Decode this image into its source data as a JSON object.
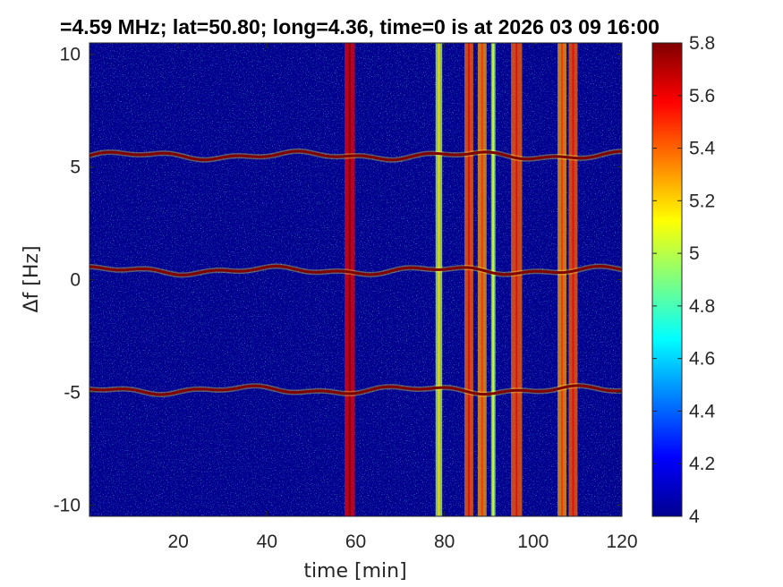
{
  "chart_data": {
    "type": "heatmap",
    "title": "=4.59 MHz;  lat=50.80; long=4.36, time=0 is at 2026 03 09 16:00",
    "xlabel": "time [min]",
    "ylabel": "Δf [Hz]",
    "xlim": [
      0,
      120
    ],
    "ylim": [
      -10.5,
      10.5
    ],
    "x_ticks": [
      "20",
      "40",
      "60",
      "80",
      "100",
      "120"
    ],
    "y_ticks": [
      "10",
      "5",
      "0",
      "-5",
      "-10"
    ],
    "colorbar": {
      "range": [
        4,
        5.8
      ],
      "ticks": [
        "5.8",
        "5.6",
        "5.4",
        "5.2",
        "5",
        "4.8",
        "4.6",
        "4.4",
        "4.2",
        "4"
      ],
      "colormap": "jet"
    },
    "background_level": 4.0,
    "carrier_lines": [
      {
        "df_hz": 5.5,
        "level": 5.8
      },
      {
        "df_hz": 0.4,
        "level": 5.8
      },
      {
        "df_hz": -4.9,
        "level": 5.8
      }
    ],
    "broadband_bands": [
      {
        "t_start": 57.5,
        "t_end": 59.8,
        "level": 5.6
      },
      {
        "t_start": 78.0,
        "t_end": 79.5,
        "level": 5.0
      },
      {
        "t_start": 84.5,
        "t_end": 86.5,
        "level": 5.4
      },
      {
        "t_start": 87.5,
        "t_end": 89.5,
        "level": 5.3
      },
      {
        "t_start": 90.5,
        "t_end": 91.5,
        "level": 4.9
      },
      {
        "t_start": 95.0,
        "t_end": 97.5,
        "level": 5.4
      },
      {
        "t_start": 105.5,
        "t_end": 107.5,
        "level": 5.3
      },
      {
        "t_start": 108.0,
        "t_end": 110.0,
        "level": 5.4
      }
    ],
    "grid": false
  }
}
